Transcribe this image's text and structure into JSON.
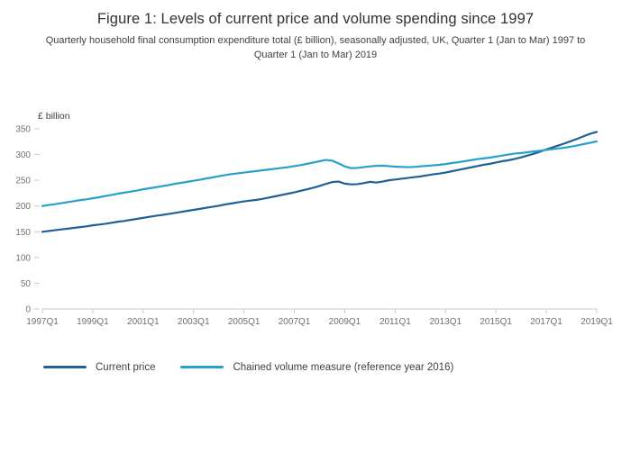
{
  "figure": {
    "title": "Figure 1: Levels of current price and volume spending since 1997",
    "subtitle": "Quarterly household final consumption expenditure total (£ billion), seasonally adjusted, UK, Quarter 1 (Jan to Mar) 1997 to Quarter 1 (Jan to Mar) 2019"
  },
  "chart_data": {
    "type": "line",
    "unit_label": "£ billion",
    "x_start": "1997Q1",
    "x_end": "2019Q1",
    "frequency": "quarterly",
    "x_tick_labels": [
      "1997Q1",
      "1999Q1",
      "2001Q1",
      "2003Q1",
      "2005Q1",
      "2007Q1",
      "2009Q1",
      "2011Q1",
      "2013Q1",
      "2015Q1",
      "2017Q1",
      "2019Q1"
    ],
    "x_tick_indices": [
      0,
      8,
      16,
      24,
      32,
      40,
      48,
      56,
      64,
      72,
      80,
      88
    ],
    "ylim": [
      0,
      350
    ],
    "y_ticks": [
      0,
      50,
      100,
      150,
      200,
      250,
      300,
      350
    ],
    "grid": false,
    "legend_position": "bottom-left",
    "axis_color": "#c9c9c9",
    "tick_label_color": "#707071",
    "series": [
      {
        "name": "Current price",
        "color": "#206095",
        "values": [
          150.0,
          151.5,
          153.0,
          154.5,
          156.0,
          157.5,
          159.0,
          160.5,
          162.5,
          164.0,
          165.5,
          167.5,
          169.5,
          171.0,
          173.0,
          175.0,
          177.0,
          179.0,
          181.0,
          182.5,
          184.5,
          186.5,
          188.5,
          190.5,
          192.5,
          194.5,
          196.5,
          198.5,
          200.5,
          203.0,
          205.0,
          207.0,
          209.0,
          210.5,
          212.0,
          214.0,
          216.5,
          219.0,
          221.5,
          224.0,
          226.5,
          229.5,
          232.5,
          235.5,
          239.0,
          243.0,
          246.5,
          247.5,
          243.5,
          242.0,
          242.5,
          244.5,
          247.0,
          245.5,
          247.5,
          250.0,
          251.5,
          253.0,
          254.5,
          256.0,
          257.5,
          259.5,
          261.5,
          263.0,
          265.0,
          267.5,
          270.0,
          272.5,
          275.0,
          277.5,
          280.0,
          282.0,
          284.5,
          287.0,
          289.0,
          291.5,
          294.5,
          298.0,
          301.5,
          305.5,
          310.0,
          314.0,
          318.0,
          322.0,
          326.5,
          331.0,
          336.0,
          340.5,
          344.0
        ]
      },
      {
        "name": "Chained volume measure (reference year 2016)",
        "color": "#27A0CC",
        "values": [
          200.0,
          202.0,
          203.5,
          205.5,
          207.5,
          209.5,
          211.5,
          213.0,
          215.0,
          217.0,
          219.5,
          221.5,
          224.0,
          226.0,
          228.0,
          230.0,
          232.5,
          234.5,
          236.5,
          238.5,
          240.5,
          243.0,
          245.0,
          247.0,
          249.0,
          251.0,
          253.5,
          255.5,
          258.0,
          260.0,
          262.0,
          263.5,
          265.0,
          266.5,
          268.0,
          269.5,
          271.0,
          272.5,
          274.0,
          275.5,
          277.5,
          279.5,
          282.0,
          284.5,
          287.0,
          289.5,
          288.0,
          283.0,
          277.0,
          273.5,
          274.0,
          275.5,
          277.0,
          278.0,
          278.5,
          277.5,
          276.5,
          276.0,
          275.5,
          276.0,
          277.0,
          278.0,
          279.0,
          280.0,
          281.5,
          283.5,
          285.0,
          287.0,
          289.0,
          291.0,
          292.5,
          294.0,
          296.0,
          298.0,
          300.0,
          302.0,
          303.0,
          304.5,
          306.0,
          307.5,
          309.0,
          310.5,
          312.0,
          313.5,
          315.5,
          318.0,
          320.5,
          323.0,
          325.5
        ]
      }
    ]
  }
}
